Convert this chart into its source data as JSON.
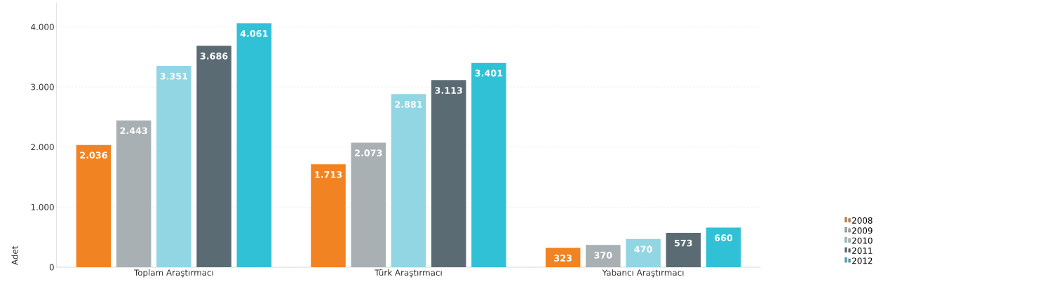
{
  "chart_data": {
    "type": "bar",
    "categories": [
      "Toplam Araştırmacı",
      "Türk Araştırmacı",
      "Yabancı Araştırmacı"
    ],
    "ylabel": "Adet",
    "ylim": [
      0,
      4400
    ],
    "yticks": [
      0,
      {
        "value": 1000,
        "label": "1.000"
      },
      {
        "value": 2000,
        "label": "2.000"
      },
      {
        "value": 3000,
        "label": "3.000"
      },
      {
        "value": 4000,
        "label": "4.000"
      }
    ],
    "grid": "y",
    "legend": "bottom right",
    "series": [
      {
        "name": "2008",
        "color": "#f28322",
        "values": [
          2036,
          1713,
          323
        ],
        "value_labels": [
          "2.036",
          "1.713",
          "323"
        ]
      },
      {
        "name": "2009",
        "color": "#a9b0b3",
        "values": [
          2443,
          2073,
          370
        ],
        "value_labels": [
          "2.443",
          "2.073",
          "370"
        ]
      },
      {
        "name": "2010",
        "color": "#92d5e3",
        "values": [
          3351,
          2881,
          470
        ],
        "value_labels": [
          "3.351",
          "2.881",
          "470"
        ]
      },
      {
        "name": "2011",
        "color": "#5b6b74",
        "values": [
          3686,
          3113,
          573
        ],
        "value_labels": [
          "3.686",
          "3.113",
          "573"
        ]
      },
      {
        "name": "2012",
        "color": "#30c1d7",
        "values": [
          4061,
          3401,
          660
        ],
        "value_labels": [
          "4.061",
          "3.401",
          "660"
        ]
      }
    ]
  }
}
